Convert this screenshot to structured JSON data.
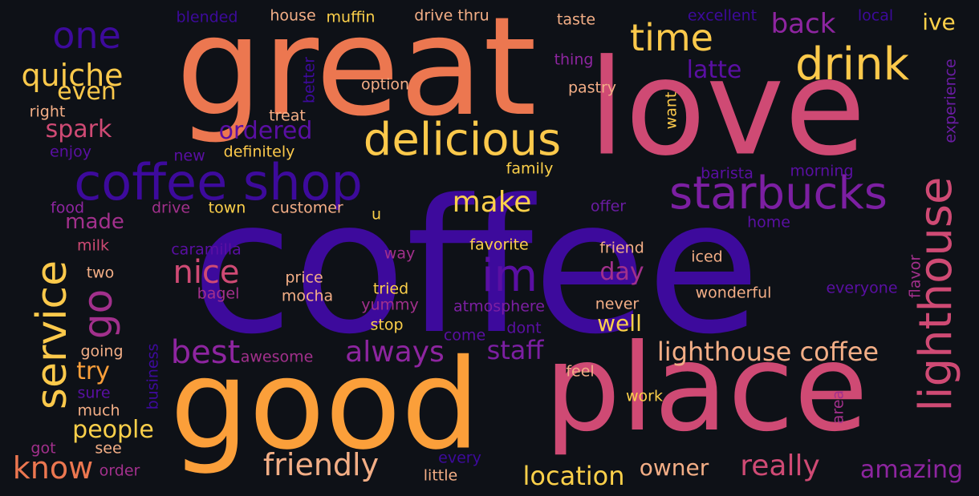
{
  "palette": {
    "background": "#0e1117",
    "indigo": "#3d0a9c",
    "purple": "#6a1ca2",
    "magenta": "#a2308c",
    "pink": "#cf4a74",
    "orange_red": "#ec7750",
    "orange": "#fb9f3a",
    "yellow": "#fcd04a"
  },
  "words": [
    {
      "id": "coffee",
      "text": "coffee",
      "color": "#3d0a9c"
    },
    {
      "id": "great",
      "text": "great",
      "color": "#ec7750"
    },
    {
      "id": "love",
      "text": "love",
      "color": "#cf4a74"
    },
    {
      "id": "good",
      "text": "good",
      "color": "#fb9f3a"
    },
    {
      "id": "place",
      "text": "place",
      "color": "#cf4a74"
    },
    {
      "id": "coffee-shop",
      "text": "coffee shop",
      "color": "#3d0a9c"
    },
    {
      "id": "delicious",
      "text": "delicious",
      "color": "#fcc94b"
    },
    {
      "id": "drink",
      "text": "drink",
      "color": "#fcc94b"
    },
    {
      "id": "time",
      "text": "time",
      "color": "#fcc94b"
    },
    {
      "id": "one",
      "text": "one",
      "color": "#3d0a9c"
    },
    {
      "id": "starbucks",
      "text": "starbucks",
      "color": "#7c1fa2"
    },
    {
      "id": "lighthouse",
      "text": "lighthouse",
      "color": "#cf4a74"
    },
    {
      "id": "service",
      "text": "service",
      "color": "#fcc94b"
    },
    {
      "id": "go",
      "text": "go",
      "color": "#a2308c"
    },
    {
      "id": "im",
      "text": "im",
      "color": "#5a0fa3"
    },
    {
      "id": "quiche",
      "text": "quiche",
      "color": "#fcc94b"
    },
    {
      "id": "back",
      "text": "back",
      "color": "#8e25a0"
    },
    {
      "id": "make",
      "text": "make",
      "color": "#fcd04a"
    },
    {
      "id": "nice",
      "text": "nice",
      "color": "#cf4a74"
    },
    {
      "id": "best",
      "text": "best",
      "color": "#8e25a0"
    },
    {
      "id": "always",
      "text": "always",
      "color": "#8e25a0"
    },
    {
      "id": "staff",
      "text": "staff",
      "color": "#7c1fa2"
    },
    {
      "id": "lighthouse-coffee",
      "text": "lighthouse coffee",
      "color": "#f3ae86"
    },
    {
      "id": "friendly",
      "text": "friendly",
      "color": "#f3ae86"
    },
    {
      "id": "really",
      "text": "really",
      "color": "#cf4a74"
    },
    {
      "id": "location",
      "text": "location",
      "color": "#fcd04a"
    },
    {
      "id": "amazing",
      "text": "amazing",
      "color": "#8e25a0"
    },
    {
      "id": "know",
      "text": "know",
      "color": "#ec7750"
    },
    {
      "id": "owner",
      "text": "owner",
      "color": "#f3ae86"
    },
    {
      "id": "ive",
      "text": "ive",
      "color": "#fcd04a"
    },
    {
      "id": "latte",
      "text": "latte",
      "color": "#5a0fa3"
    },
    {
      "id": "even",
      "text": "even",
      "color": "#fcc94b"
    },
    {
      "id": "spark",
      "text": "spark",
      "color": "#cf4a74"
    },
    {
      "id": "ordered",
      "text": "ordered",
      "color": "#5a0fa3"
    },
    {
      "id": "made",
      "text": "made",
      "color": "#a2308c"
    },
    {
      "id": "try",
      "text": "try",
      "color": "#fb9f3a"
    },
    {
      "id": "people",
      "text": "people",
      "color": "#fcd04a"
    },
    {
      "id": "day",
      "text": "day",
      "color": "#a2308c"
    },
    {
      "id": "well",
      "text": "well",
      "color": "#fcd04a"
    },
    {
      "id": "blended",
      "text": "blended",
      "color": "#3d0a9c"
    },
    {
      "id": "house",
      "text": "house",
      "color": "#f3ae86"
    },
    {
      "id": "muffin",
      "text": "muffin",
      "color": "#fcd04a"
    },
    {
      "id": "drive-thru",
      "text": "drive thru",
      "color": "#f3ae86"
    },
    {
      "id": "taste",
      "text": "taste",
      "color": "#f3ae86"
    },
    {
      "id": "excellent",
      "text": "excellent",
      "color": "#3d0a9c"
    },
    {
      "id": "local",
      "text": "local",
      "color": "#3d0a9c"
    },
    {
      "id": "thing",
      "text": "thing",
      "color": "#8e25a0"
    },
    {
      "id": "option",
      "text": "option",
      "color": "#f3ae86"
    },
    {
      "id": "pastry",
      "text": "pastry",
      "color": "#f3ae86"
    },
    {
      "id": "right",
      "text": "right",
      "color": "#f3ae86"
    },
    {
      "id": "treat",
      "text": "treat",
      "color": "#f3ae86"
    },
    {
      "id": "enjoy",
      "text": "enjoy",
      "color": "#5a0fa3"
    },
    {
      "id": "new",
      "text": "new",
      "color": "#5a0fa3"
    },
    {
      "id": "definitely",
      "text": "definitely",
      "color": "#fcc94b"
    },
    {
      "id": "family",
      "text": "family",
      "color": "#fcd04a"
    },
    {
      "id": "barista",
      "text": "barista",
      "color": "#5a0fa3"
    },
    {
      "id": "morning",
      "text": "morning",
      "color": "#5a0fa3"
    },
    {
      "id": "food",
      "text": "food",
      "color": "#8e25a0"
    },
    {
      "id": "drive",
      "text": "drive",
      "color": "#a2308c"
    },
    {
      "id": "town",
      "text": "town",
      "color": "#fcd04a"
    },
    {
      "id": "customer",
      "text": "customer",
      "color": "#f3ae86"
    },
    {
      "id": "u",
      "text": "u",
      "color": "#fcd04a"
    },
    {
      "id": "offer",
      "text": "offer",
      "color": "#6a1ca2"
    },
    {
      "id": "home",
      "text": "home",
      "color": "#5a0fa3"
    },
    {
      "id": "milk",
      "text": "milk",
      "color": "#cf4a74"
    },
    {
      "id": "caramilla",
      "text": "caramilla",
      "color": "#5a0fa3"
    },
    {
      "id": "favorite",
      "text": "favorite",
      "color": "#fcd04a"
    },
    {
      "id": "friend",
      "text": "friend",
      "color": "#f3ae86"
    },
    {
      "id": "way",
      "text": "way",
      "color": "#a2308c"
    },
    {
      "id": "iced",
      "text": "iced",
      "color": "#f3ae86"
    },
    {
      "id": "two",
      "text": "two",
      "color": "#f3ae86"
    },
    {
      "id": "price",
      "text": "price",
      "color": "#f3ae86"
    },
    {
      "id": "bagel",
      "text": "bagel",
      "color": "#a2308c"
    },
    {
      "id": "tried",
      "text": "tried",
      "color": "#fcd04a"
    },
    {
      "id": "mocha",
      "text": "mocha",
      "color": "#f3ae86"
    },
    {
      "id": "yummy",
      "text": "yummy",
      "color": "#a2308c"
    },
    {
      "id": "atmosphere",
      "text": "atmosphere",
      "color": "#7c1fa2"
    },
    {
      "id": "wonderful",
      "text": "wonderful",
      "color": "#f3ae86"
    },
    {
      "id": "everyone",
      "text": "everyone",
      "color": "#5a0fa3"
    },
    {
      "id": "never",
      "text": "never",
      "color": "#f3ae86"
    },
    {
      "id": "stop",
      "text": "stop",
      "color": "#fcd04a"
    },
    {
      "id": "come",
      "text": "come",
      "color": "#5a0fa3"
    },
    {
      "id": "dont",
      "text": "dont",
      "color": "#5a0fa3"
    },
    {
      "id": "going",
      "text": "going",
      "color": "#f3ae86"
    },
    {
      "id": "awesome",
      "text": "awesome",
      "color": "#a2308c"
    },
    {
      "id": "feel",
      "text": "feel",
      "color": "#f3ae86"
    },
    {
      "id": "sure",
      "text": "sure",
      "color": "#5a0fa3"
    },
    {
      "id": "much",
      "text": "much",
      "color": "#f3ae86"
    },
    {
      "id": "work",
      "text": "work",
      "color": "#fcd04a"
    },
    {
      "id": "got",
      "text": "got",
      "color": "#a2308c"
    },
    {
      "id": "see",
      "text": "see",
      "color": "#f3ae86"
    },
    {
      "id": "order",
      "text": "order",
      "color": "#a2308c"
    },
    {
      "id": "every",
      "text": "every",
      "color": "#3d0a9c"
    },
    {
      "id": "little",
      "text": "little",
      "color": "#f3ae86"
    },
    {
      "id": "better",
      "text": "better",
      "color": "#3d0a9c"
    },
    {
      "id": "want",
      "text": "want",
      "color": "#fcc94b"
    },
    {
      "id": "experience",
      "text": "experience",
      "color": "#6a1ca2"
    },
    {
      "id": "flavor",
      "text": "flavor",
      "color": "#a2308c"
    },
    {
      "id": "area",
      "text": "area",
      "color": "#a2308c"
    },
    {
      "id": "business",
      "text": "business",
      "color": "#3d0a9c"
    }
  ]
}
